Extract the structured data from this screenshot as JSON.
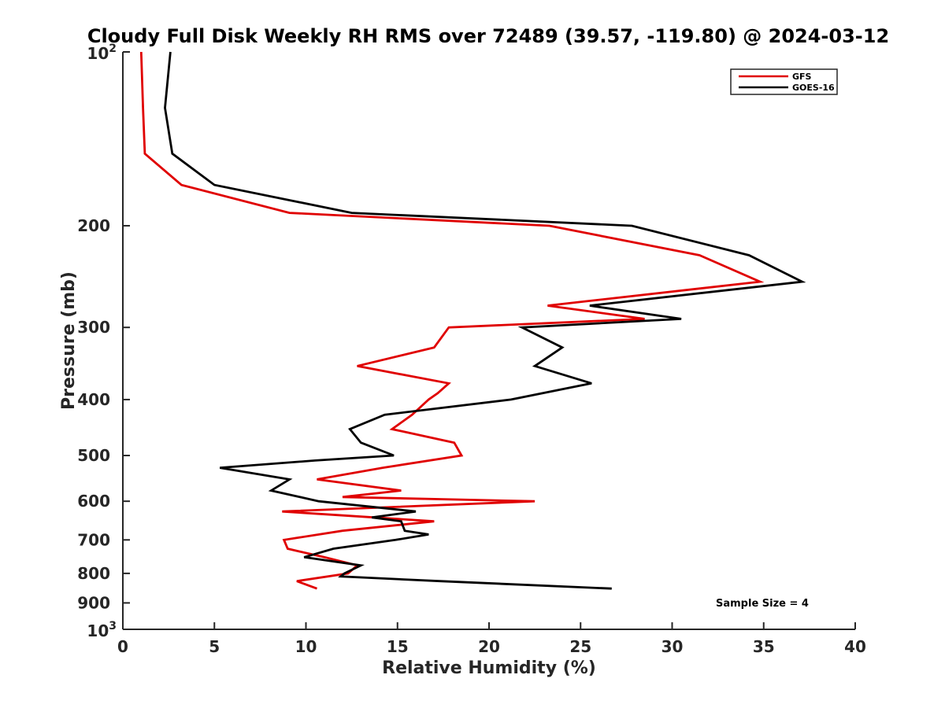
{
  "chart_data": {
    "type": "line",
    "title": "Cloudy Full Disk Weekly RH RMS over 72489 (39.57, -119.80) @ 2024-03-12",
    "xlabel": "Relative Humidity (%)",
    "ylabel": "Pressure (mb)",
    "xlim": [
      0,
      40
    ],
    "ylim": [
      100,
      1000
    ],
    "y_scale": "log",
    "y_reversed": true,
    "x_ticks": [
      "0",
      "5",
      "10",
      "15",
      "20",
      "25",
      "30",
      "35",
      "40"
    ],
    "y_ticks": [
      {
        "value": 100,
        "base": "10",
        "exp": "2"
      },
      {
        "value": 200,
        "label": "200"
      },
      {
        "value": 300,
        "label": "300"
      },
      {
        "value": 400,
        "label": "400"
      },
      {
        "value": 500,
        "label": "500"
      },
      {
        "value": 600,
        "label": "600"
      },
      {
        "value": 700,
        "label": "700"
      },
      {
        "value": 800,
        "label": "800"
      },
      {
        "value": 900,
        "label": "900"
      },
      {
        "value": 1000,
        "base": "10",
        "exp": "3"
      }
    ],
    "grid": false,
    "legend_position": "top-right",
    "annotation": "Sample Size = 4",
    "series": [
      {
        "name": "GFS",
        "color": "#e00000",
        "points": [
          [
            1.0,
            100
          ],
          [
            1.1,
            125
          ],
          [
            1.2,
            150
          ],
          [
            3.2,
            170
          ],
          [
            9.1,
            190
          ],
          [
            23.3,
            200
          ],
          [
            31.5,
            225
          ],
          [
            34.8,
            250
          ],
          [
            23.2,
            275
          ],
          [
            28.5,
            290
          ],
          [
            17.8,
            300
          ],
          [
            17.0,
            325
          ],
          [
            12.8,
            350
          ],
          [
            17.8,
            375
          ],
          [
            17.2,
            390
          ],
          [
            16.7,
            400
          ],
          [
            15.8,
            425
          ],
          [
            14.7,
            450
          ],
          [
            18.1,
            475
          ],
          [
            18.5,
            500
          ],
          [
            14.2,
            525
          ],
          [
            10.6,
            550
          ],
          [
            15.2,
            575
          ],
          [
            12.0,
            590
          ],
          [
            22.5,
            600
          ],
          [
            8.7,
            625
          ],
          [
            17.0,
            650
          ],
          [
            12.0,
            675
          ],
          [
            8.8,
            700
          ],
          [
            9.0,
            725
          ],
          [
            11.0,
            750
          ],
          [
            12.8,
            775
          ],
          [
            12.3,
            800
          ],
          [
            9.5,
            825
          ],
          [
            10.6,
            850
          ]
        ]
      },
      {
        "name": "GOES-16",
        "color": "#000000",
        "points": [
          [
            2.6,
            100
          ],
          [
            2.3,
            125
          ],
          [
            2.7,
            150
          ],
          [
            5.0,
            170
          ],
          [
            12.5,
            190
          ],
          [
            27.8,
            200
          ],
          [
            34.2,
            225
          ],
          [
            37.1,
            250
          ],
          [
            25.5,
            275
          ],
          [
            30.5,
            290
          ],
          [
            21.8,
            300
          ],
          [
            24.0,
            325
          ],
          [
            22.5,
            350
          ],
          [
            25.6,
            375
          ],
          [
            21.2,
            400
          ],
          [
            14.3,
            425
          ],
          [
            12.4,
            450
          ],
          [
            13.0,
            475
          ],
          [
            14.8,
            500
          ],
          [
            10.5,
            510
          ],
          [
            5.3,
            525
          ],
          [
            9.1,
            550
          ],
          [
            8.1,
            575
          ],
          [
            10.7,
            600
          ],
          [
            16.0,
            625
          ],
          [
            13.6,
            640
          ],
          [
            15.2,
            650
          ],
          [
            15.4,
            675
          ],
          [
            16.7,
            685
          ],
          [
            14.9,
            700
          ],
          [
            11.5,
            725
          ],
          [
            9.9,
            750
          ],
          [
            13.0,
            775
          ],
          [
            12.1,
            800
          ],
          [
            11.9,
            810
          ],
          [
            17.3,
            825
          ],
          [
            26.7,
            850
          ]
        ]
      }
    ]
  }
}
